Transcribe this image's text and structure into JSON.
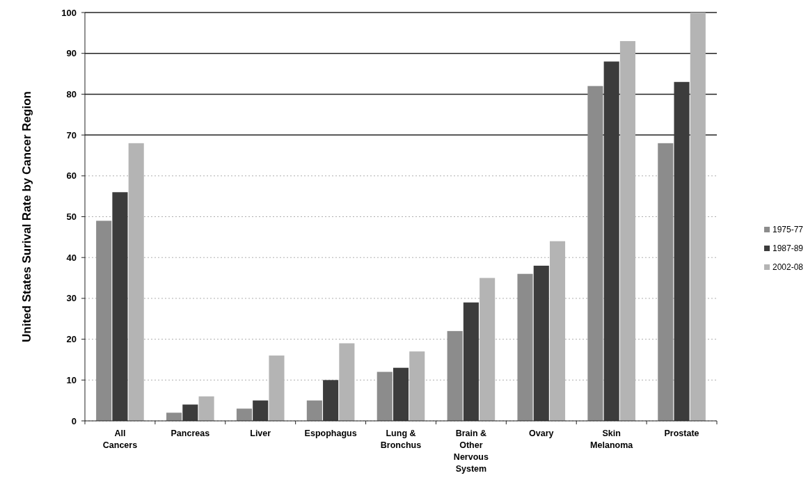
{
  "chart_data": {
    "type": "bar",
    "ylabel": "United States Surival Rate by Cancer Region",
    "categories": [
      "All Cancers",
      "Pancreas",
      "Liver",
      "Espophagus",
      "Lung & Bronchus",
      "Brain & Other Nervous System",
      "Ovary",
      "Skin Melanoma",
      "Prostate"
    ],
    "series": [
      {
        "name": "1975-77",
        "color": "#8c8c8c",
        "values": [
          49,
          2,
          3,
          5,
          12,
          22,
          36,
          82,
          68
        ]
      },
      {
        "name": "1987-89",
        "color": "#3c3c3c",
        "values": [
          56,
          4,
          5,
          10,
          13,
          29,
          38,
          88,
          83
        ]
      },
      {
        "name": "2002-08",
        "color": "#b4b4b4",
        "values": [
          68,
          6,
          16,
          19,
          17,
          35,
          44,
          93,
          100
        ]
      }
    ],
    "ylim": [
      0,
      100
    ],
    "yticks": [
      0,
      10,
      20,
      30,
      40,
      50,
      60,
      70,
      80,
      90,
      100
    ],
    "grid": "y",
    "legend": "right"
  }
}
